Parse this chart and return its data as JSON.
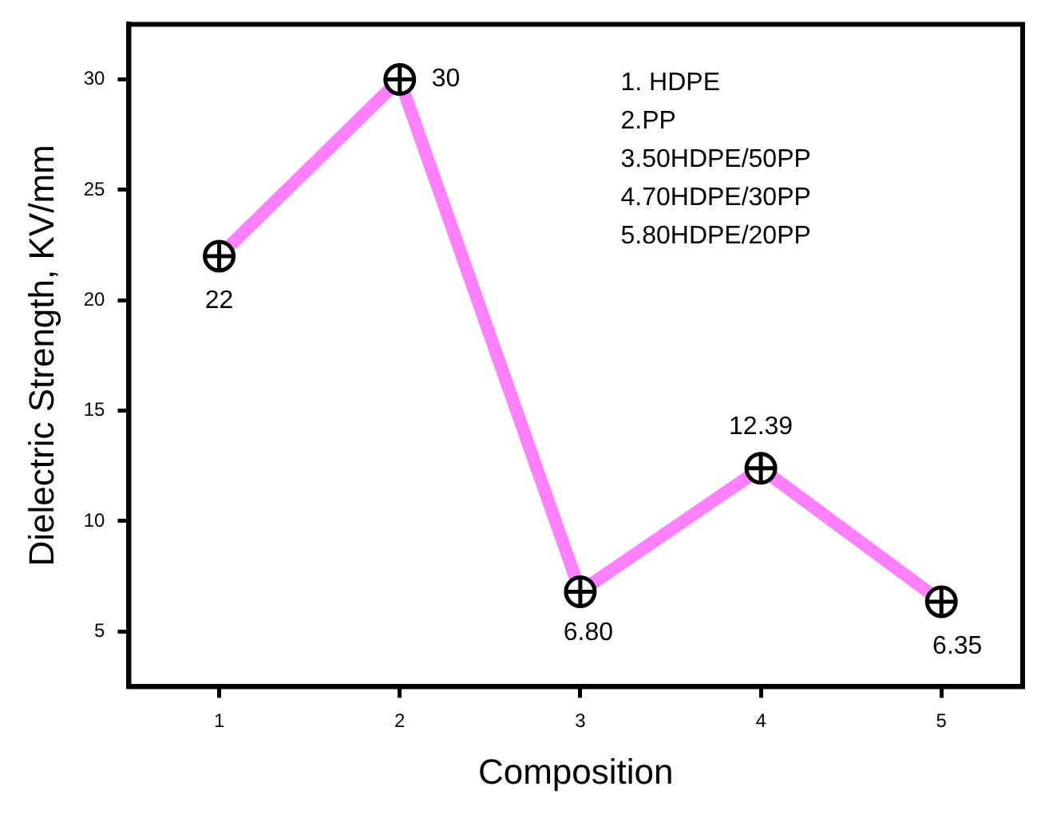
{
  "chart_data": {
    "type": "line",
    "xlabel": "Composition",
    "ylabel": "Dielectric Strength, KV/mm",
    "x": [
      1,
      2,
      3,
      4,
      5
    ],
    "values": [
      22,
      30,
      6.8,
      12.39,
      6.35
    ],
    "color": "#ff80ff",
    "value_labels": [
      "22",
      "30",
      "6.80",
      "12.39",
      "6.35"
    ],
    "xlim": [
      0.5,
      5.45
    ],
    "xticks": [
      1,
      2,
      3,
      4,
      5
    ],
    "ylim": [
      2.5,
      32.5
    ],
    "yticks": [
      5,
      10,
      15,
      20,
      25,
      30
    ],
    "marker": "circle",
    "line_style": "solid",
    "grid": false,
    "legend": false,
    "annotations": [
      "1. HDPE",
      "2.PP",
      "3.50HDPE/50PP",
      "4.70HDPE/30PP",
      "5.80HDPE/20PP"
    ]
  }
}
